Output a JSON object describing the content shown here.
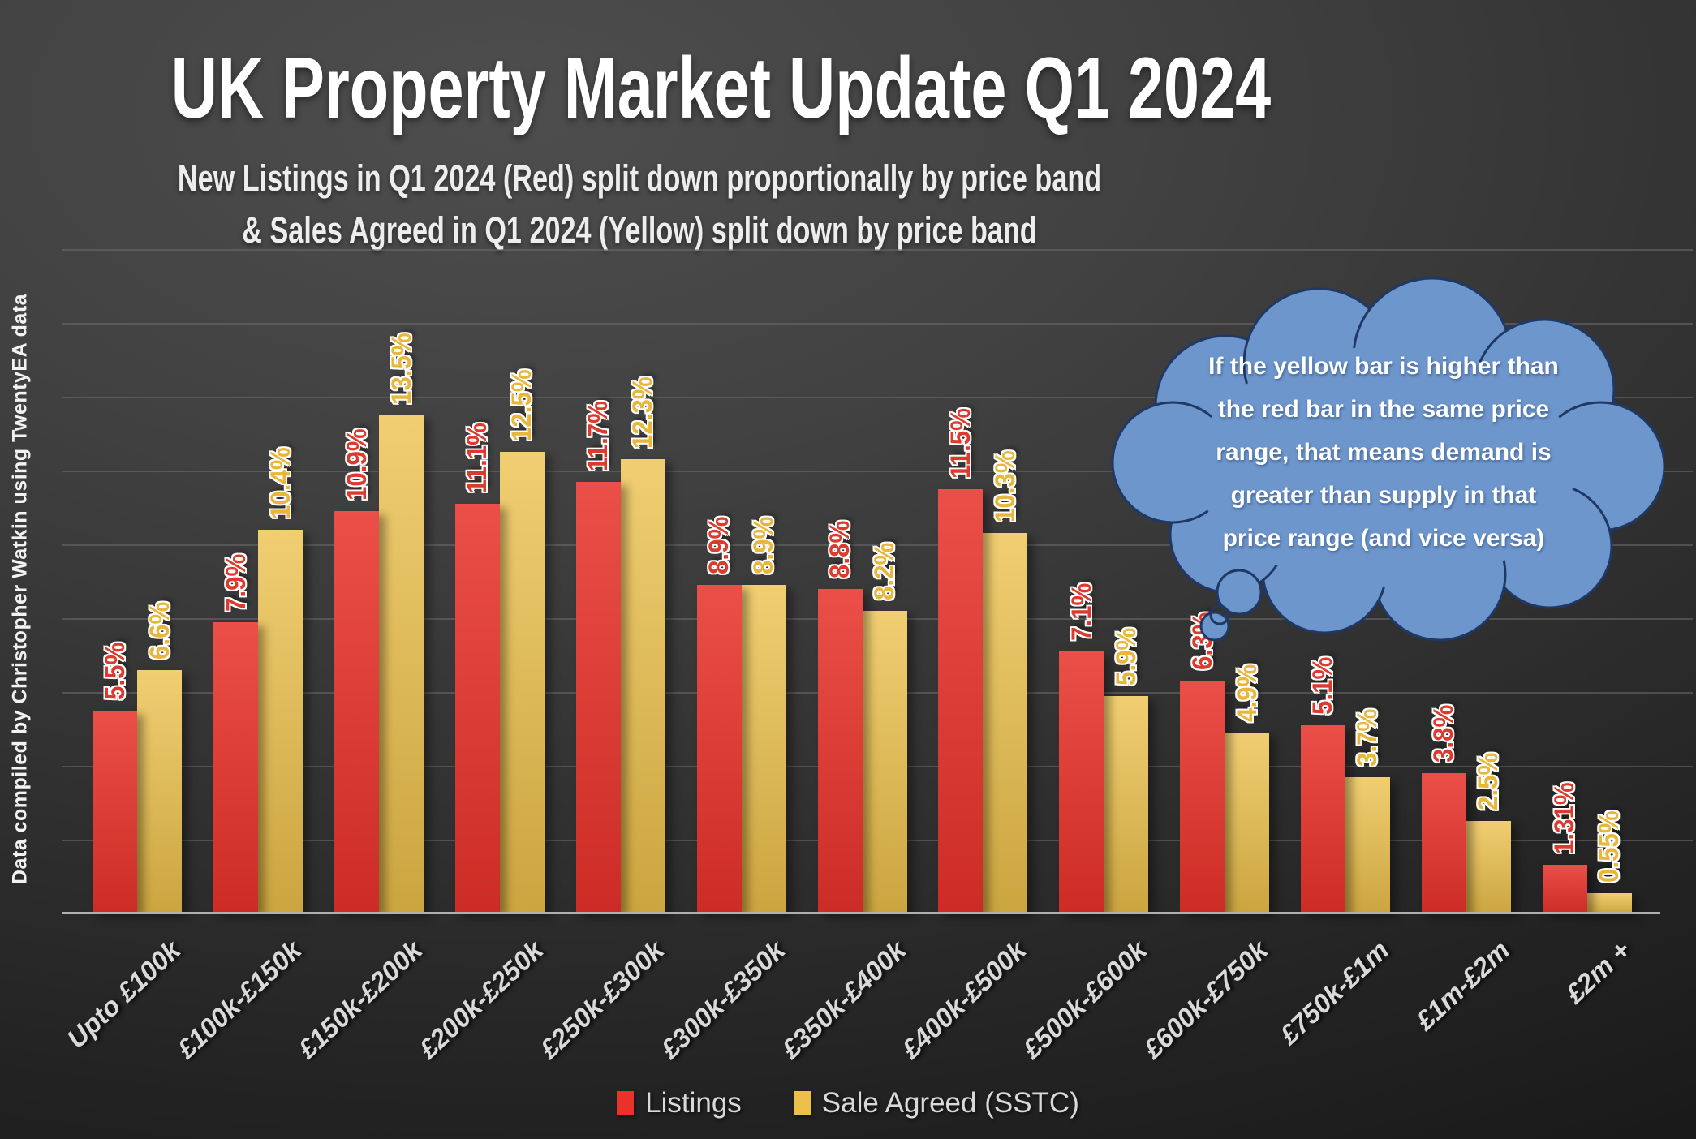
{
  "title": "UK Property Market Update Q1 2024",
  "subtitle_line1": "New Listings in Q1 2024 (Red) split down proportionally by price band",
  "subtitle_line2": "& Sales Agreed in Q1 2024 (Yellow) split down by price band",
  "credit": "Data compiled by Christopher Watkin using TwentyEA data",
  "bubble": {
    "lines": [
      "If the yellow bar is higher than",
      "the red bar in the same price",
      "range, that means demand is",
      "greater than supply in that",
      "price range (and vice versa)"
    ]
  },
  "legend": {
    "listings": "Listings",
    "sales": "Sale Agreed (SSTC)"
  },
  "colors": {
    "listings_red": "#e8322a",
    "sales_yellow": "#ecc04a",
    "label_red": "#dd3a2e",
    "label_yellow": "#e9b63c",
    "cloud_fill": "#6d96cc",
    "cloud_stroke": "#1f3864"
  },
  "chart_data": {
    "type": "bar",
    "title": "UK Property Market Update Q1 2024",
    "categories": [
      "Upto £100k",
      "£100k-£150k",
      "£150k-£200k",
      "£200k-£250k",
      "£250k-£300k",
      "£300k-£350k",
      "£350k-£400k",
      "£400k-£500k",
      "£500k-£600k",
      "£600k-£750k",
      "£750k-£1m",
      "£1m-£2m",
      "£2m +"
    ],
    "series": [
      {
        "name": "Listings",
        "values": [
          5.5,
          7.9,
          10.9,
          11.1,
          11.7,
          8.9,
          8.8,
          11.5,
          7.1,
          6.3,
          5.1,
          3.8,
          1.31
        ],
        "labels": [
          "5.5%",
          "7.9%",
          "10.9%",
          "11.1%",
          "11.7%",
          "8.9%",
          "8.8%",
          "11.5%",
          "7.1%",
          "6.3%",
          "5.1%",
          "3.8%",
          "1.31%"
        ]
      },
      {
        "name": "Sale Agreed (SSTC)",
        "values": [
          6.6,
          10.4,
          13.5,
          12.5,
          12.3,
          8.9,
          8.2,
          10.3,
          5.9,
          4.9,
          3.7,
          2.5,
          0.55
        ],
        "labels": [
          "6.6%",
          "10.4%",
          "13.5%",
          "12.5%",
          "12.3%",
          "8.9%",
          "8.2%",
          "10.3%",
          "5.9%",
          "4.9%",
          "3.7%",
          "2.5%",
          "0.55%"
        ]
      }
    ],
    "xlabel": "",
    "ylabel": "",
    "ylim": [
      0,
      18.3
    ],
    "gridline_step_pct": 2,
    "grid": true,
    "y_axis_tick_labels_visible": false,
    "legend_position": "bottom",
    "bar_value_labels": "rotated 90°, shown above each bar"
  }
}
